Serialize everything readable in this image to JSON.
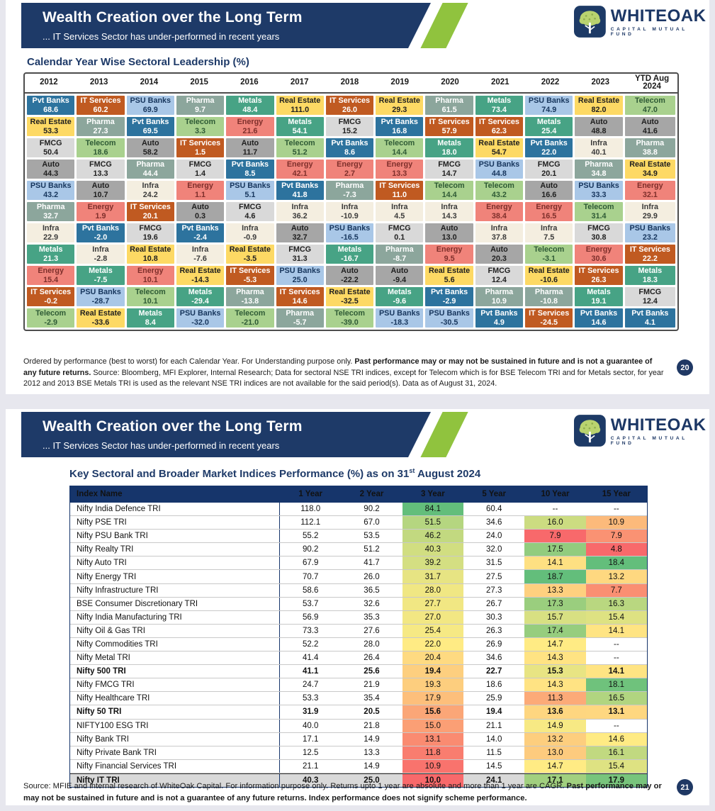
{
  "brand": {
    "name": "WHITEOAK",
    "tagline": "CAPITAL MUTUAL FUND"
  },
  "header": {
    "title": "Wealth Creation over the Long Term",
    "subtitle": "... IT Services Sector has under-performed in recent years"
  },
  "slide1": {
    "section_title": "Calendar Year Wise Sectoral Leadership (%)",
    "page_number": "20",
    "footnote": [
      {
        "t": "Ordered by performance (best to worst) for each Calendar Year. For Understanding purpose only. ",
        "b": false
      },
      {
        "t": "Past performance may or may not be sustained in future and is not a guarantee of any future returns.",
        "b": true
      },
      {
        "t": " Source: Bloomberg, MFI Explorer, Internal Research; Data for sectoral NSE TRI indices, except for Telecom which is for BSE Telecom TRI and for Metals sector, for year 2012 and 2013 BSE Metals TRI is used as the relevant NSE TRI indices are not available for the said period(s). Data as of August 31, 2024.",
        "b": false
      }
    ]
  },
  "slide2": {
    "section_title_prefix": "Key Sectoral and Broader Market Indices Performance (%) as on 31",
    "section_title_sup": "st",
    "section_title_suffix": " August 2024",
    "page_number": "21",
    "footer": [
      {
        "t": "Source: MFIE and internal research of WhiteOak Capital. For information purpose only. Returns upto 1 year are absolute and more than 1 year are CAGR. ",
        "b": false
      },
      {
        "t": "Past performance may or may not be sustained in future and is not a guarantee of any future returns. Index performance does not signify scheme performance.",
        "b": true
      }
    ]
  },
  "sector_styles": {
    "Pvt Banks": {
      "bg": "#2d739e",
      "fg": "#ffffff"
    },
    "Real Estate": {
      "bg": "#fdd964",
      "fg": "#1f1f1f"
    },
    "FMCG": {
      "bg": "#d9d9d9",
      "fg": "#1f1f1f"
    },
    "Auto": {
      "bg": "#a6a6a6",
      "fg": "#1f1f1f"
    },
    "PSU Banks": {
      "bg": "#a9c7e7",
      "fg": "#17365d"
    },
    "Pharma": {
      "bg": "#8ca69c",
      "fg": "#ffffff"
    },
    "Infra": {
      "bg": "#f4eee0",
      "fg": "#3b3b3b"
    },
    "Metals": {
      "bg": "#47a385",
      "fg": "#ffffff"
    },
    "Energy": {
      "bg": "#f0837a",
      "fg": "#7e2f2b"
    },
    "IT Services": {
      "bg": "#c05a21",
      "fg": "#ffffff"
    },
    "Telecom": {
      "bg": "#a9d18e",
      "fg": "#2e5a35"
    }
  },
  "chart_data": [
    {
      "type": "heatmap",
      "title": "Calendar Year Wise Sectoral Leadership (%)",
      "note": "Ordered by performance (best to worst) for each Calendar Year",
      "columns": [
        "2012",
        "2013",
        "2014",
        "2015",
        "2016",
        "2017",
        "2018",
        "2019",
        "2020",
        "2021",
        "2022",
        "2023",
        "YTD Aug\n2024"
      ],
      "rows": [
        [
          [
            "Pvt Banks",
            "68.6"
          ],
          [
            "IT Services",
            "60.2"
          ],
          [
            "PSU Banks",
            "69.9"
          ],
          [
            "Pharma",
            "9.7"
          ],
          [
            "Metals",
            "48.4"
          ],
          [
            "Real Estate",
            "111.0"
          ],
          [
            "IT Services",
            "26.0"
          ],
          [
            "Real Estate",
            "29.3"
          ],
          [
            "Pharma",
            "61.5"
          ],
          [
            "Metals",
            "73.4"
          ],
          [
            "PSU Banks",
            "74.9"
          ],
          [
            "Real Estate",
            "82.0"
          ],
          [
            "Telecom",
            "47.0"
          ]
        ],
        [
          [
            "Real Estate",
            "53.3"
          ],
          [
            "Pharma",
            "27.3"
          ],
          [
            "Pvt Banks",
            "69.5"
          ],
          [
            "Telecom",
            "3.3"
          ],
          [
            "Energy",
            "21.6"
          ],
          [
            "Metals",
            "54.1"
          ],
          [
            "FMCG",
            "15.2"
          ],
          [
            "Pvt Banks",
            "16.8"
          ],
          [
            "IT Services",
            "57.9"
          ],
          [
            "IT Services",
            "62.3"
          ],
          [
            "Metals",
            "25.4"
          ],
          [
            "Auto",
            "48.8"
          ],
          [
            "Auto",
            "41.6"
          ]
        ],
        [
          [
            "FMCG",
            "50.4"
          ],
          [
            "Telecom",
            "18.6"
          ],
          [
            "Auto",
            "58.2"
          ],
          [
            "IT Services",
            "1.5"
          ],
          [
            "Auto",
            "11.7"
          ],
          [
            "Telecom",
            "51.2"
          ],
          [
            "Pvt Banks",
            "8.6"
          ],
          [
            "Telecom",
            "14.4"
          ],
          [
            "Metals",
            "18.0"
          ],
          [
            "Real Estate",
            "54.7"
          ],
          [
            "Pvt Banks",
            "22.0"
          ],
          [
            "Infra",
            "40.1"
          ],
          [
            "Pharma",
            "38.8"
          ]
        ],
        [
          [
            "Auto",
            "44.3"
          ],
          [
            "FMCG",
            "13.3"
          ],
          [
            "Pharma",
            "44.4"
          ],
          [
            "FMCG",
            "1.4"
          ],
          [
            "Pvt Banks",
            "8.5"
          ],
          [
            "Energy",
            "42.1"
          ],
          [
            "Energy",
            "2.7"
          ],
          [
            "Energy",
            "13.3"
          ],
          [
            "FMCG",
            "14.7"
          ],
          [
            "PSU Banks",
            "44.8"
          ],
          [
            "FMCG",
            "20.1"
          ],
          [
            "Pharma",
            "34.8"
          ],
          [
            "Real Estate",
            "34.9"
          ]
        ],
        [
          [
            "PSU Banks",
            "43.2"
          ],
          [
            "Auto",
            "10.7"
          ],
          [
            "Infra",
            "24.2"
          ],
          [
            "Energy",
            "1.1"
          ],
          [
            "PSU Banks",
            "5.1"
          ],
          [
            "Pvt Banks",
            "41.8"
          ],
          [
            "Pharma",
            "-7.3"
          ],
          [
            "IT Services",
            "11.0"
          ],
          [
            "Telecom",
            "14.4"
          ],
          [
            "Telecom",
            "43.2"
          ],
          [
            "Auto",
            "16.6"
          ],
          [
            "PSU Banks",
            "33.3"
          ],
          [
            "Energy",
            "32.1"
          ]
        ],
        [
          [
            "Pharma",
            "32.7"
          ],
          [
            "Energy",
            "1.9"
          ],
          [
            "IT Services",
            "20.1"
          ],
          [
            "Auto",
            "0.3"
          ],
          [
            "FMCG",
            "4.6"
          ],
          [
            "Infra",
            "36.2"
          ],
          [
            "Infra",
            "-10.9"
          ],
          [
            "Infra",
            "4.5"
          ],
          [
            "Infra",
            "14.3"
          ],
          [
            "Energy",
            "38.4"
          ],
          [
            "Energy",
            "16.5"
          ],
          [
            "Telecom",
            "31.4"
          ],
          [
            "Infra",
            "29.9"
          ]
        ],
        [
          [
            "Infra",
            "22.9"
          ],
          [
            "Pvt Banks",
            "-2.0"
          ],
          [
            "FMCG",
            "19.6"
          ],
          [
            "Pvt Banks",
            "-2.4"
          ],
          [
            "Infra",
            "-0.9"
          ],
          [
            "Auto",
            "32.7"
          ],
          [
            "PSU Banks",
            "-16.5"
          ],
          [
            "FMCG",
            "0.1"
          ],
          [
            "Auto",
            "13.0"
          ],
          [
            "Infra",
            "37.8"
          ],
          [
            "Infra",
            "7.5"
          ],
          [
            "FMCG",
            "30.8"
          ],
          [
            "PSU Banks",
            "23.2"
          ]
        ],
        [
          [
            "Metals",
            "21.3"
          ],
          [
            "Infra",
            "-2.8"
          ],
          [
            "Real Estate",
            "10.8"
          ],
          [
            "Infra",
            "-7.6"
          ],
          [
            "Real Estate",
            "-3.5"
          ],
          [
            "FMCG",
            "31.3"
          ],
          [
            "Metals",
            "-16.7"
          ],
          [
            "Pharma",
            "-8.7"
          ],
          [
            "Energy",
            "9.5"
          ],
          [
            "Auto",
            "20.3"
          ],
          [
            "Telecom",
            "-3.1"
          ],
          [
            "Energy",
            "30.6"
          ],
          [
            "IT Services",
            "22.2"
          ]
        ],
        [
          [
            "Energy",
            "15.4"
          ],
          [
            "Metals",
            "-7.5"
          ],
          [
            "Energy",
            "10.1"
          ],
          [
            "Real Estate",
            "-14.3"
          ],
          [
            "IT Services",
            "-5.3"
          ],
          [
            "PSU Banks",
            "25.0"
          ],
          [
            "Auto",
            "-22.2"
          ],
          [
            "Auto",
            "-9.4"
          ],
          [
            "Real Estate",
            "5.6"
          ],
          [
            "FMCG",
            "12.4"
          ],
          [
            "Real Estate",
            "-10.6"
          ],
          [
            "IT Services",
            "26.3"
          ],
          [
            "Metals",
            "18.3"
          ]
        ],
        [
          [
            "IT Services",
            "-0.2"
          ],
          [
            "PSU Banks",
            "-28.7"
          ],
          [
            "Telecom",
            "10.1"
          ],
          [
            "Metals",
            "-29.4"
          ],
          [
            "Pharma",
            "-13.8"
          ],
          [
            "IT Services",
            "14.6"
          ],
          [
            "Real Estate",
            "-32.5"
          ],
          [
            "Metals",
            "-9.6"
          ],
          [
            "Pvt Banks",
            "-2.9"
          ],
          [
            "Pharma",
            "10.9"
          ],
          [
            "Pharma",
            "-10.8"
          ],
          [
            "Metals",
            "19.1"
          ],
          [
            "FMCG",
            "12.4"
          ]
        ],
        [
          [
            "Telecom",
            "-2.9"
          ],
          [
            "Real Estate",
            "-33.6"
          ],
          [
            "Metals",
            "8.4"
          ],
          [
            "PSU Banks",
            "-32.0"
          ],
          [
            "Telecom",
            "-21.0"
          ],
          [
            "Pharma",
            "-5.7"
          ],
          [
            "Telecom",
            "-39.0"
          ],
          [
            "PSU Banks",
            "-18.3"
          ],
          [
            "PSU Banks",
            "-30.5"
          ],
          [
            "Pvt Banks",
            "4.9"
          ],
          [
            "IT Services",
            "-24.5"
          ],
          [
            "Pvt Banks",
            "14.6"
          ],
          [
            "Pvt Banks",
            "4.1"
          ]
        ]
      ]
    },
    {
      "type": "table",
      "title": "Key Sectoral and Broader Market Indices Performance (%) as on 31st August 2024",
      "columns": [
        "Index Name",
        "1 Year",
        "2 Year",
        "3 Year",
        "5 Year",
        "10 Year",
        "15 Year"
      ],
      "heat_columns": [
        2,
        4,
        5
      ],
      "heat_scale": {
        "low": "#F8696B",
        "mid": "#FFEB84",
        "high": "#63BE7B"
      },
      "rows": [
        {
          "name": "Nifty India Defence TRI",
          "bold": false,
          "values": [
            "118.0",
            "90.2",
            "84.1",
            "60.4",
            "--",
            "--"
          ]
        },
        {
          "name": "Nifty PSE TRI",
          "bold": false,
          "values": [
            "112.1",
            "67.0",
            "51.5",
            "34.6",
            "16.0",
            "10.9"
          ]
        },
        {
          "name": "Nifty PSU Bank TRI",
          "bold": false,
          "values": [
            "55.2",
            "53.5",
            "46.2",
            "24.0",
            "7.9",
            "7.9"
          ]
        },
        {
          "name": "Nifty Realty TRI",
          "bold": false,
          "values": [
            "90.2",
            "51.2",
            "40.3",
            "32.0",
            "17.5",
            "4.8"
          ]
        },
        {
          "name": "Nifty Auto TRI",
          "bold": false,
          "values": [
            "67.9",
            "41.7",
            "39.2",
            "31.5",
            "14.1",
            "18.4"
          ]
        },
        {
          "name": "Nifty Energy TRI",
          "bold": false,
          "values": [
            "70.7",
            "26.0",
            "31.7",
            "27.5",
            "18.7",
            "13.2"
          ]
        },
        {
          "name": "Nifty Infrastructure TRI",
          "bold": false,
          "values": [
            "58.6",
            "36.5",
            "28.0",
            "27.3",
            "13.3",
            "7.7"
          ]
        },
        {
          "name": "BSE Consumer Discretionary TRI",
          "bold": false,
          "values": [
            "53.7",
            "32.6",
            "27.7",
            "26.7",
            "17.3",
            "16.3"
          ]
        },
        {
          "name": "Nifty India Manufacturing TRI",
          "bold": false,
          "values": [
            "56.9",
            "35.3",
            "27.0",
            "30.3",
            "15.7",
            "15.4"
          ]
        },
        {
          "name": "Nifty Oil & Gas TRI",
          "bold": false,
          "values": [
            "73.3",
            "27.6",
            "25.4",
            "26.3",
            "17.4",
            "14.1"
          ]
        },
        {
          "name": "Nifty Commodities TRI",
          "bold": false,
          "values": [
            "52.2",
            "28.0",
            "22.0",
            "26.9",
            "14.7",
            "--"
          ]
        },
        {
          "name": "Nifty Metal TRI",
          "bold": false,
          "values": [
            "41.4",
            "26.4",
            "20.4",
            "34.6",
            "14.3",
            "--"
          ]
        },
        {
          "name": "Nifty 500 TRI",
          "bold": true,
          "values": [
            "41.1",
            "25.6",
            "19.4",
            "22.7",
            "15.3",
            "14.1"
          ]
        },
        {
          "name": "Nifty FMCG TRI",
          "bold": false,
          "values": [
            "24.7",
            "21.9",
            "19.3",
            "18.6",
            "14.3",
            "18.1"
          ]
        },
        {
          "name": "Nifty Healthcare TRI",
          "bold": false,
          "values": [
            "53.3",
            "35.4",
            "17.9",
            "25.9",
            "11.3",
            "16.5"
          ]
        },
        {
          "name": "Nifty 50 TRI",
          "bold": true,
          "values": [
            "31.9",
            "20.5",
            "15.6",
            "19.4",
            "13.6",
            "13.1"
          ]
        },
        {
          "name": "NIFTY100 ESG TRI",
          "bold": false,
          "values": [
            "40.0",
            "21.8",
            "15.0",
            "21.1",
            "14.9",
            "--"
          ]
        },
        {
          "name": "Nifty Bank TRI",
          "bold": false,
          "values": [
            "17.1",
            "14.9",
            "13.1",
            "14.0",
            "13.2",
            "14.6"
          ]
        },
        {
          "name": "Nifty Private Bank TRI",
          "bold": false,
          "values": [
            "12.5",
            "13.3",
            "11.8",
            "11.5",
            "13.0",
            "16.1"
          ]
        },
        {
          "name": "Nifty Financial Services TRI",
          "bold": false,
          "values": [
            "21.1",
            "14.9",
            "10.9",
            "14.5",
            "14.7",
            "15.4"
          ]
        },
        {
          "name": "Nifty IT TRI",
          "bold": true,
          "values": [
            "40.3",
            "25.0",
            "10.0",
            "24.1",
            "17.1",
            "17.9"
          ]
        }
      ]
    }
  ]
}
